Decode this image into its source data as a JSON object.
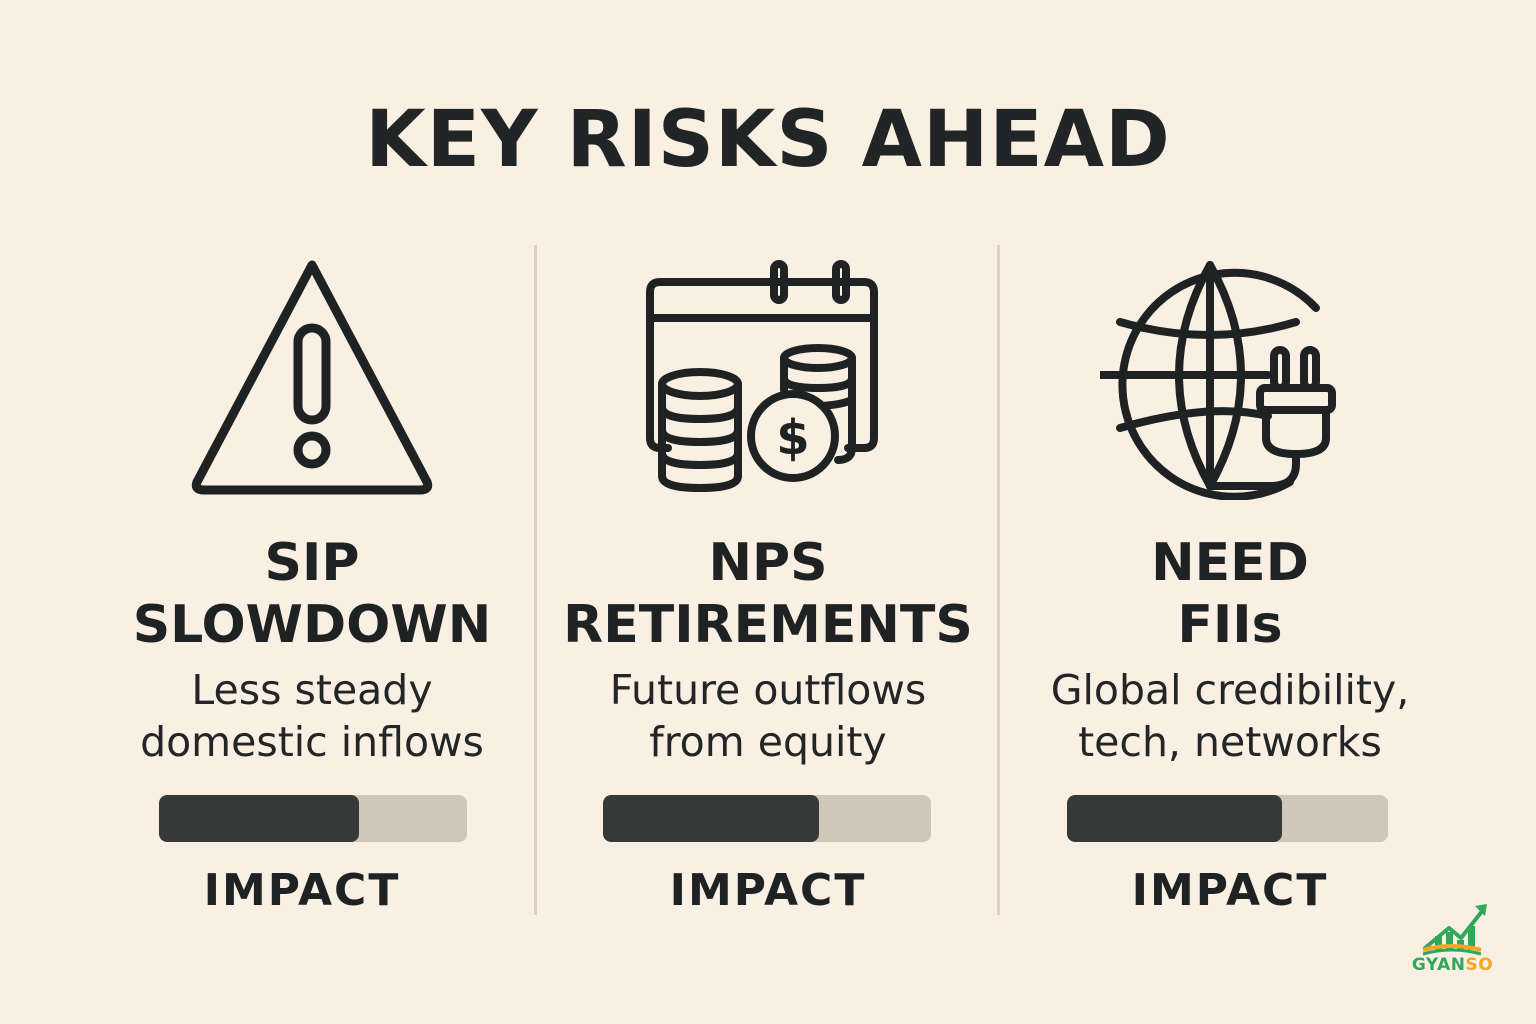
{
  "title": "KEY RISKS AHEAD",
  "colors": {
    "background": "#f9f0e3",
    "bar_fill": "#363938",
    "bar_track": "#cfc7b9",
    "logo_green": "#2fa85a",
    "logo_orange": "#f5a623"
  },
  "risks": [
    {
      "icon": "warning-triangle-icon",
      "heading": [
        "SIP",
        "SLOWDOWN"
      ],
      "description": [
        "Less steady",
        "domestic inflows"
      ],
      "impact_label": "IMPACT",
      "impact_level": 0.65
    },
    {
      "icon": "calendar-coins-icon",
      "heading": [
        "NPS",
        "RETIREMENTS"
      ],
      "description": [
        "Future outflows",
        "from equity"
      ],
      "impact_label": "IMPACT",
      "impact_level": 0.66
    },
    {
      "icon": "globe-plug-icon",
      "heading": [
        "NEED",
        "FIIs"
      ],
      "description": [
        "Global credibility,",
        "tech, networks"
      ],
      "impact_label": "IMPACT",
      "impact_level": 0.67
    }
  ],
  "logo": {
    "text_main": "GYAN",
    "text_accent": "SO"
  }
}
